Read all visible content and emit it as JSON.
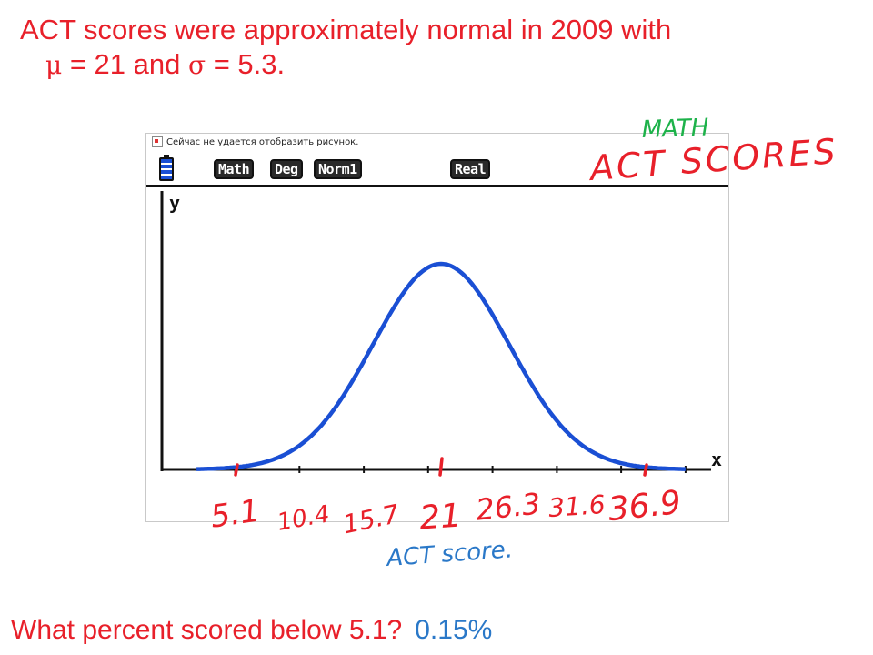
{
  "heading": {
    "line1": "ACT scores were approximately normal in 2009 with",
    "mu_symbol": "μ",
    "mean_text": " = 21 and ",
    "sigma_symbol": "σ",
    "sd_text": " = 5.3."
  },
  "screen": {
    "broken_image_text": "Сейчас не удается отобразить рисунок.",
    "tags": [
      "Math",
      "Deg",
      "Norm1",
      "Real"
    ],
    "y_axis_label": "y",
    "x_axis_label": "x"
  },
  "annotations": {
    "math": "MATH",
    "act_scores": "ACT SCORES",
    "axis_caption": "ACT score."
  },
  "question": {
    "text": "What percent scored below 5.1?",
    "answer": "0.15%"
  },
  "colors": {
    "curve": "#1a4fd4",
    "red_ink": "#e8202a",
    "green_ink": "#1db24a",
    "blue_ink": "#2a78c8"
  },
  "chart_data": {
    "type": "line",
    "mean": 21,
    "sd": 5.3,
    "xlim": [
      2,
      40
    ],
    "tick_labels": [
      "5.1",
      "10.4",
      "15.7",
      "21",
      "26.3",
      "31.6",
      "36.9"
    ],
    "tick_values": [
      5.1,
      10.4,
      15.7,
      21,
      26.3,
      31.6,
      36.9
    ],
    "marked_ticks": [
      5.1,
      21,
      36.9
    ],
    "xlabel": "ACT score.",
    "ylabel": "y"
  }
}
